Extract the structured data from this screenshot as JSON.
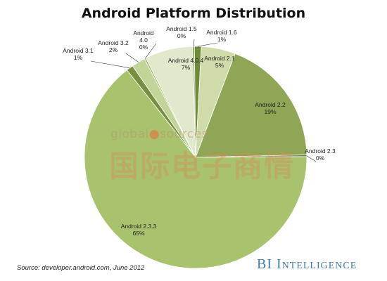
{
  "chart_data": {
    "type": "pie",
    "title": "Android Platform Distribution",
    "slices": [
      {
        "label": "Android 1.5",
        "value": 0,
        "value_label": "0%",
        "color": "#7a8f4a"
      },
      {
        "label": "Android 1.6",
        "value": 1,
        "value_label": "1%",
        "color": "#6f8b3a"
      },
      {
        "label": "Android 2.1",
        "value": 5,
        "value_label": "5%",
        "color": "#cfdcaa"
      },
      {
        "label": "Android 2.2",
        "value": 19,
        "value_label": "19%",
        "color": "#8ea655"
      },
      {
        "label": "Android 2.3",
        "value": 0,
        "value_label": "0%",
        "color": "#5e7a30"
      },
      {
        "label": "Android 2.3.3",
        "value": 65,
        "value_label": "65%",
        "color": "#a8c26e"
      },
      {
        "label": "Android 3.1",
        "value": 1,
        "value_label": "1%",
        "color": "#778f40"
      },
      {
        "label": "Android 3.2",
        "value": 2,
        "value_label": "2%",
        "color": "#c2d598"
      },
      {
        "label": "Android 4.0",
        "value": 0,
        "value_label": "0%",
        "color": "#9bb562"
      },
      {
        "label": "Android 4.0.4",
        "value": 7,
        "value_label": "7%",
        "color": "#e1e9cc"
      }
    ]
  },
  "source": "Source: developer.android.com, June 2012",
  "brand": {
    "part1": "BI",
    "part2": "Intelligence"
  },
  "watermark": {
    "latin_part1": "global",
    "latin_part2": "sources",
    "cjk": "国际电子商情"
  }
}
